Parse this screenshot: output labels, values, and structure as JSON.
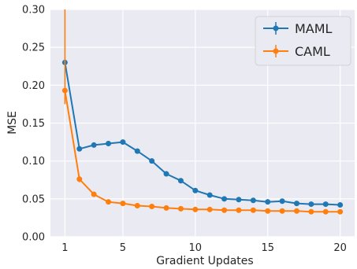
{
  "chart_data": {
    "type": "line",
    "title": "",
    "xlabel": "Gradient Updates",
    "ylabel": "MSE",
    "xlim": [
      0,
      21
    ],
    "ylim": [
      0,
      0.3
    ],
    "xticks": [
      1,
      5,
      10,
      15,
      20
    ],
    "xtick_labels": [
      "1",
      "5",
      "10",
      "15",
      "20"
    ],
    "yticks": [
      0.0,
      0.05,
      0.1,
      0.15,
      0.2,
      0.25,
      0.3
    ],
    "ytick_labels": [
      "0.00",
      "0.05",
      "0.10",
      "0.15",
      "0.20",
      "0.25",
      "0.30"
    ],
    "grid": true,
    "background": "#eaeaf2",
    "legend_position": "top-right",
    "x": [
      1,
      2,
      3,
      4,
      5,
      6,
      7,
      8,
      9,
      10,
      11,
      12,
      13,
      14,
      15,
      16,
      17,
      18,
      19,
      20
    ],
    "series": [
      {
        "name": "MAML",
        "color": "#1f77b4",
        "values": [
          0.23,
          0.116,
          0.121,
          0.123,
          0.125,
          0.113,
          0.1,
          0.083,
          0.074,
          0.061,
          0.055,
          0.05,
          0.049,
          0.048,
          0.046,
          0.047,
          0.044,
          0.043,
          0.043,
          0.042
        ],
        "error": [
          0.002,
          0.003,
          0.003,
          0.003,
          0.003,
          0.003,
          0.003,
          0.003,
          0.003,
          0.002,
          0.002,
          0.002,
          0.002,
          0.002,
          0.002,
          0.002,
          0.002,
          0.002,
          0.002,
          0.002
        ]
      },
      {
        "name": "CAML",
        "color": "#ff7f0e",
        "values": [
          0.193,
          0.076,
          0.056,
          0.046,
          0.044,
          0.041,
          0.04,
          0.038,
          0.037,
          0.036,
          0.036,
          0.035,
          0.035,
          0.035,
          0.034,
          0.034,
          0.034,
          0.033,
          0.033,
          0.033
        ],
        "error": [
          0.018,
          0.004,
          0.002,
          0.002,
          0.002,
          0.002,
          0.002,
          0.002,
          0.002,
          0.002,
          0.002,
          0.002,
          0.002,
          0.002,
          0.002,
          0.002,
          0.002,
          0.002,
          0.002,
          0.002
        ],
        "first_point_upper_error": 0.3
      }
    ]
  }
}
